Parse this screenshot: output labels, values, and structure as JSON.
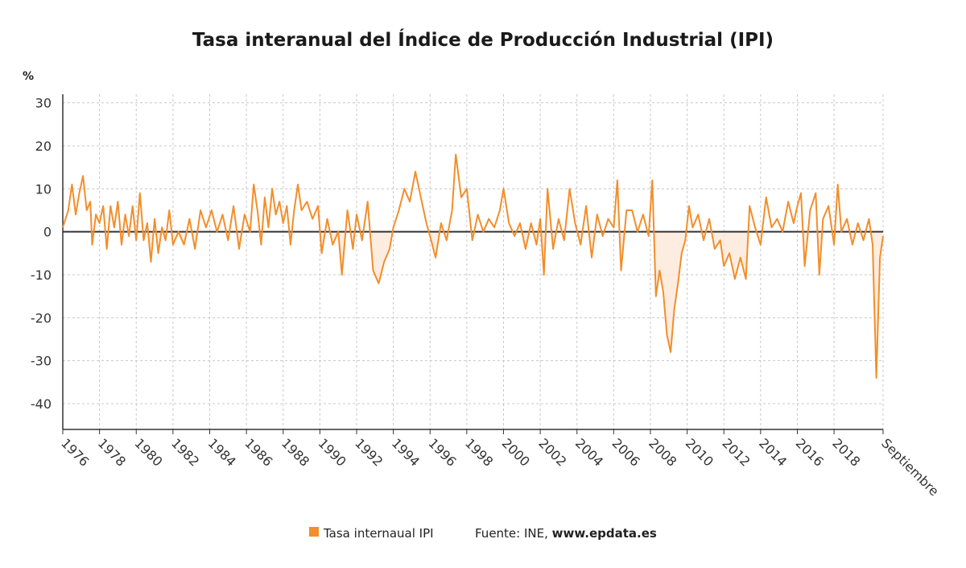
{
  "chart_data": {
    "type": "line",
    "title": "Tasa interanual del Índice de Producción Industrial (IPI)",
    "ylabel": "%",
    "ylim": [
      -46,
      32
    ],
    "yticks": [
      30,
      20,
      10,
      0,
      -10,
      -20,
      -30,
      -40
    ],
    "xlim": [
      1976.0,
      2020.67
    ],
    "xticks": [
      {
        "value": 1976,
        "label": "1976"
      },
      {
        "value": 1978,
        "label": "1978"
      },
      {
        "value": 1980,
        "label": "1980"
      },
      {
        "value": 1982,
        "label": "1982"
      },
      {
        "value": 1984,
        "label": "1984"
      },
      {
        "value": 1986,
        "label": "1986"
      },
      {
        "value": 1988,
        "label": "1988"
      },
      {
        "value": 1990,
        "label": "1990"
      },
      {
        "value": 1992,
        "label": "1992"
      },
      {
        "value": 1994,
        "label": "1994"
      },
      {
        "value": 1996,
        "label": "1996"
      },
      {
        "value": 1998,
        "label": "1998"
      },
      {
        "value": 2000,
        "label": "2000"
      },
      {
        "value": 2002,
        "label": "2002"
      },
      {
        "value": 2004,
        "label": "2004"
      },
      {
        "value": 2006,
        "label": "2006"
      },
      {
        "value": 2008,
        "label": "2008"
      },
      {
        "value": 2010,
        "label": "2010"
      },
      {
        "value": 2012,
        "label": "2012"
      },
      {
        "value": 2014,
        "label": "2014"
      },
      {
        "value": 2016,
        "label": "2016"
      },
      {
        "value": 2018,
        "label": "2018"
      },
      {
        "value": 2020.67,
        "label": "Septiembre"
      }
    ],
    "grid": true,
    "legend_position": "bottom-center",
    "series": [
      {
        "name": "Tasa internaual IPI",
        "color": "#f28e2b",
        "points": [
          [
            1976.0,
            1
          ],
          [
            1976.3,
            5
          ],
          [
            1976.5,
            11
          ],
          [
            1976.7,
            4
          ],
          [
            1976.9,
            9
          ],
          [
            1977.1,
            13
          ],
          [
            1977.3,
            5
          ],
          [
            1977.5,
            7
          ],
          [
            1977.6,
            -3
          ],
          [
            1977.8,
            4
          ],
          [
            1978.0,
            2
          ],
          [
            1978.2,
            6
          ],
          [
            1978.4,
            -4
          ],
          [
            1978.6,
            6
          ],
          [
            1978.8,
            1
          ],
          [
            1979.0,
            7
          ],
          [
            1979.2,
            -3
          ],
          [
            1979.4,
            4
          ],
          [
            1979.6,
            -1
          ],
          [
            1979.8,
            6
          ],
          [
            1980.0,
            -2
          ],
          [
            1980.2,
            9
          ],
          [
            1980.4,
            -2
          ],
          [
            1980.6,
            2
          ],
          [
            1980.8,
            -7
          ],
          [
            1981.0,
            3
          ],
          [
            1981.2,
            -5
          ],
          [
            1981.4,
            1
          ],
          [
            1981.6,
            -2
          ],
          [
            1981.8,
            5
          ],
          [
            1982.0,
            -3
          ],
          [
            1982.3,
            0
          ],
          [
            1982.6,
            -3
          ],
          [
            1982.9,
            3
          ],
          [
            1983.2,
            -4
          ],
          [
            1983.5,
            5
          ],
          [
            1983.8,
            1
          ],
          [
            1984.1,
            5
          ],
          [
            1984.4,
            0
          ],
          [
            1984.7,
            4
          ],
          [
            1985.0,
            -2
          ],
          [
            1985.3,
            6
          ],
          [
            1985.6,
            -4
          ],
          [
            1985.9,
            4
          ],
          [
            1986.2,
            0
          ],
          [
            1986.4,
            11
          ],
          [
            1986.6,
            5
          ],
          [
            1986.8,
            -3
          ],
          [
            1987.0,
            8
          ],
          [
            1987.2,
            1
          ],
          [
            1987.4,
            10
          ],
          [
            1987.6,
            4
          ],
          [
            1987.8,
            7
          ],
          [
            1988.0,
            2
          ],
          [
            1988.2,
            6
          ],
          [
            1988.4,
            -3
          ],
          [
            1988.6,
            5
          ],
          [
            1988.8,
            11
          ],
          [
            1989.0,
            5
          ],
          [
            1989.3,
            7
          ],
          [
            1989.6,
            3
          ],
          [
            1989.9,
            6
          ],
          [
            1990.1,
            -5
          ],
          [
            1990.4,
            3
          ],
          [
            1990.7,
            -3
          ],
          [
            1991.0,
            0
          ],
          [
            1991.2,
            -10
          ],
          [
            1991.5,
            5
          ],
          [
            1991.8,
            -4
          ],
          [
            1992.0,
            4
          ],
          [
            1992.3,
            -2
          ],
          [
            1992.6,
            7
          ],
          [
            1992.9,
            -9
          ],
          [
            1993.2,
            -12
          ],
          [
            1993.5,
            -7
          ],
          [
            1993.8,
            -4
          ],
          [
            1994.0,
            1
          ],
          [
            1994.3,
            5
          ],
          [
            1994.6,
            10
          ],
          [
            1994.9,
            7
          ],
          [
            1995.2,
            14
          ],
          [
            1995.5,
            8
          ],
          [
            1995.8,
            2
          ],
          [
            1996.0,
            -1
          ],
          [
            1996.3,
            -6
          ],
          [
            1996.6,
            2
          ],
          [
            1996.9,
            -2
          ],
          [
            1997.2,
            5
          ],
          [
            1997.4,
            18
          ],
          [
            1997.7,
            8
          ],
          [
            1998.0,
            10
          ],
          [
            1998.3,
            -2
          ],
          [
            1998.6,
            4
          ],
          [
            1998.9,
            0
          ],
          [
            1999.2,
            3
          ],
          [
            1999.5,
            1
          ],
          [
            1999.8,
            5
          ],
          [
            2000.0,
            10
          ],
          [
            2000.3,
            2
          ],
          [
            2000.6,
            -1
          ],
          [
            2000.9,
            2
          ],
          [
            2001.2,
            -4
          ],
          [
            2001.5,
            2
          ],
          [
            2001.8,
            -3
          ],
          [
            2002.0,
            3
          ],
          [
            2002.2,
            -10
          ],
          [
            2002.4,
            10
          ],
          [
            2002.7,
            -4
          ],
          [
            2003.0,
            3
          ],
          [
            2003.3,
            -2
          ],
          [
            2003.6,
            10
          ],
          [
            2003.9,
            2
          ],
          [
            2004.2,
            -3
          ],
          [
            2004.5,
            6
          ],
          [
            2004.8,
            -6
          ],
          [
            2005.1,
            4
          ],
          [
            2005.4,
            -1
          ],
          [
            2005.7,
            3
          ],
          [
            2006.0,
            1
          ],
          [
            2006.2,
            12
          ],
          [
            2006.4,
            -9
          ],
          [
            2006.7,
            5
          ],
          [
            2007.0,
            5
          ],
          [
            2007.3,
            0
          ],
          [
            2007.6,
            4
          ],
          [
            2007.9,
            -1
          ],
          [
            2008.1,
            12
          ],
          [
            2008.3,
            -15
          ],
          [
            2008.5,
            -9
          ],
          [
            2008.7,
            -14
          ],
          [
            2008.9,
            -24
          ],
          [
            2009.1,
            -28
          ],
          [
            2009.3,
            -18
          ],
          [
            2009.5,
            -12
          ],
          [
            2009.7,
            -5
          ],
          [
            2009.9,
            -2
          ],
          [
            2010.1,
            6
          ],
          [
            2010.3,
            1
          ],
          [
            2010.6,
            4
          ],
          [
            2010.9,
            -2
          ],
          [
            2011.2,
            3
          ],
          [
            2011.5,
            -4
          ],
          [
            2011.8,
            -2
          ],
          [
            2012.0,
            -8
          ],
          [
            2012.3,
            -5
          ],
          [
            2012.6,
            -11
          ],
          [
            2012.9,
            -6
          ],
          [
            2013.2,
            -11
          ],
          [
            2013.4,
            6
          ],
          [
            2013.7,
            1
          ],
          [
            2014.0,
            -3
          ],
          [
            2014.3,
            8
          ],
          [
            2014.6,
            1
          ],
          [
            2014.9,
            3
          ],
          [
            2015.2,
            0
          ],
          [
            2015.5,
            7
          ],
          [
            2015.8,
            2
          ],
          [
            2016.0,
            6
          ],
          [
            2016.2,
            9
          ],
          [
            2016.4,
            -8
          ],
          [
            2016.7,
            5
          ],
          [
            2017.0,
            9
          ],
          [
            2017.2,
            -10
          ],
          [
            2017.4,
            3
          ],
          [
            2017.7,
            6
          ],
          [
            2018.0,
            -3
          ],
          [
            2018.2,
            11
          ],
          [
            2018.4,
            0
          ],
          [
            2018.7,
            3
          ],
          [
            2019.0,
            -3
          ],
          [
            2019.3,
            2
          ],
          [
            2019.6,
            -2
          ],
          [
            2019.9,
            3
          ],
          [
            2020.1,
            -3
          ],
          [
            2020.3,
            -34
          ],
          [
            2020.5,
            -6
          ],
          [
            2020.67,
            -1
          ]
        ]
      }
    ],
    "source_label": "Fuente: INE, ",
    "source_link": "www.epdata.es"
  }
}
